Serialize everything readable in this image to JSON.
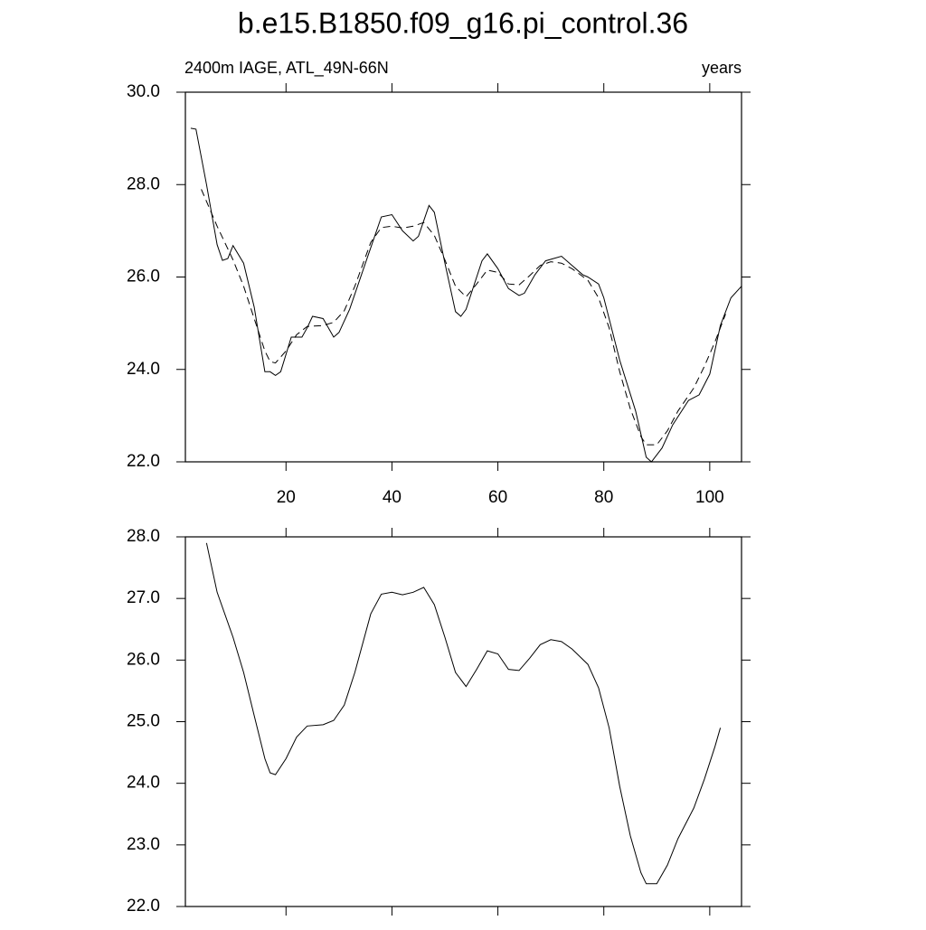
{
  "chart_data": [
    {
      "type": "line",
      "title": "b.e15.B1850.f09_g16.pi_control.36",
      "subtitle_left": "2400m IAGE, ATL_49N-66N",
      "subtitle_right": "years",
      "xlim": [
        1,
        106
      ],
      "xticks": [
        20,
        40,
        60,
        80,
        100
      ],
      "xtick_labels": true,
      "ylim": [
        22,
        30
      ],
      "yticks": [
        {
          "value": 22,
          "label": "22.0"
        },
        {
          "value": 24,
          "label": "24.0"
        },
        {
          "value": 26,
          "label": "26.0"
        },
        {
          "value": 28,
          "label": "28.0"
        },
        {
          "value": 30,
          "label": "30.0"
        }
      ],
      "series": [
        {
          "color": "#000000",
          "style": "solid",
          "x": [
            2,
            3,
            5,
            7,
            8,
            9,
            10,
            12,
            14,
            16,
            17,
            18,
            19,
            21,
            23,
            24,
            25,
            27,
            29,
            30,
            32,
            35,
            38,
            40,
            42,
            44,
            45,
            47,
            48,
            50,
            52,
            53,
            54,
            57,
            58,
            60,
            62,
            64,
            65,
            67,
            69,
            72,
            74,
            76,
            77,
            79,
            80,
            83,
            86,
            88,
            89,
            91,
            93,
            96,
            98,
            100,
            102,
            104,
            106
          ],
          "values": [
            29.22,
            29.2,
            28.0,
            26.7,
            26.36,
            26.4,
            26.68,
            26.3,
            25.35,
            23.95,
            23.95,
            23.87,
            23.95,
            24.7,
            24.7,
            24.9,
            25.15,
            25.1,
            24.7,
            24.8,
            25.3,
            26.3,
            27.3,
            27.35,
            27.0,
            26.78,
            26.88,
            27.55,
            27.4,
            26.3,
            25.25,
            25.15,
            25.3,
            26.35,
            26.5,
            26.18,
            25.75,
            25.6,
            25.65,
            26.05,
            26.35,
            26.45,
            26.25,
            26.05,
            26.0,
            25.85,
            25.55,
            24.2,
            23.1,
            22.1,
            22.0,
            22.3,
            22.8,
            23.33,
            23.45,
            23.9,
            24.95,
            25.55,
            25.8
          ]
        },
        {
          "color": "#000000",
          "style": "dashed",
          "x": [
            4,
            7,
            10,
            12,
            14,
            16,
            17,
            18,
            20,
            22,
            24,
            27,
            29,
            31,
            33,
            36,
            38,
            40,
            42,
            44,
            46,
            48,
            50,
            52,
            54,
            56,
            58,
            60,
            62,
            64,
            66,
            68,
            70,
            72,
            74,
            77,
            79,
            81,
            83,
            85,
            87,
            88,
            90,
            92,
            94,
            97,
            99,
            101,
            103
          ],
          "values": [
            27.9,
            27.1,
            26.37,
            25.8,
            25.1,
            24.4,
            24.17,
            24.14,
            24.4,
            24.75,
            24.93,
            24.95,
            25.02,
            25.27,
            25.8,
            26.75,
            27.07,
            27.1,
            27.06,
            27.1,
            27.18,
            26.9,
            26.37,
            25.8,
            25.57,
            25.85,
            26.15,
            26.1,
            25.85,
            25.83,
            26.03,
            26.25,
            26.33,
            26.3,
            26.18,
            25.93,
            25.55,
            24.9,
            23.95,
            23.15,
            22.55,
            22.37,
            22.37,
            22.67,
            23.1,
            23.6,
            24.07,
            24.6,
            25.2
          ]
        }
      ]
    },
    {
      "type": "line",
      "xlim": [
        1,
        106
      ],
      "xticks": [
        20,
        40,
        60,
        80,
        100
      ],
      "xtick_labels": false,
      "ylim": [
        22,
        28
      ],
      "yticks": [
        {
          "value": 22,
          "label": "22.0"
        },
        {
          "value": 23,
          "label": "23.0"
        },
        {
          "value": 24,
          "label": "24.0"
        },
        {
          "value": 25,
          "label": "25.0"
        },
        {
          "value": 26,
          "label": "26.0"
        },
        {
          "value": 27,
          "label": "27.0"
        },
        {
          "value": 28,
          "label": "28.0"
        }
      ],
      "series": [
        {
          "color": "#000000",
          "style": "solid",
          "x": [
            5,
            7,
            10,
            12,
            14,
            16,
            17,
            18,
            20,
            22,
            24,
            27,
            29,
            31,
            33,
            36,
            38,
            40,
            42,
            44,
            46,
            48,
            50,
            52,
            54,
            56,
            58,
            60,
            62,
            64,
            66,
            68,
            70,
            72,
            74,
            77,
            79,
            81,
            83,
            85,
            87,
            88,
            90,
            92,
            94,
            97,
            99,
            101,
            102
          ],
          "values": [
            27.9,
            27.1,
            26.37,
            25.8,
            25.1,
            24.4,
            24.17,
            24.14,
            24.4,
            24.75,
            24.93,
            24.95,
            25.02,
            25.27,
            25.8,
            26.75,
            27.07,
            27.1,
            27.06,
            27.1,
            27.18,
            26.9,
            26.37,
            25.8,
            25.57,
            25.85,
            26.15,
            26.1,
            25.85,
            25.83,
            26.03,
            26.25,
            26.33,
            26.3,
            26.18,
            25.93,
            25.55,
            24.9,
            23.95,
            23.15,
            22.55,
            22.37,
            22.37,
            22.67,
            23.1,
            23.6,
            24.07,
            24.6,
            24.9
          ]
        }
      ]
    }
  ]
}
